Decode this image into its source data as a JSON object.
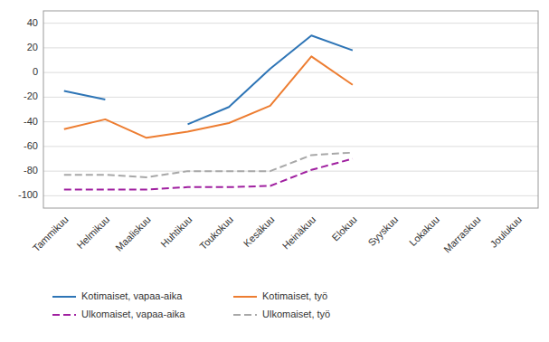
{
  "chart_data": {
    "type": "line",
    "categories": [
      "Tammikuu",
      "Helmikuu",
      "Maaliskuu",
      "Huhtikuu",
      "Toukokuu",
      "Kesäkuu",
      "Heinäkuu",
      "Elokuu",
      "Syyskuu",
      "Lokakuu",
      "Marraskuu",
      "Joulukuu"
    ],
    "series": [
      {
        "name": "Kotimaiset, vapaa-aika",
        "color": "#2E75B6",
        "line_style": "solid",
        "values": [
          -15,
          -22,
          null,
          -42,
          -28,
          3,
          30,
          18,
          null,
          null,
          null,
          null
        ]
      },
      {
        "name": "Kotimaiset, työ",
        "color": "#ED7D31",
        "line_style": "solid",
        "values": [
          -46,
          -38,
          -53,
          -48,
          -41,
          -27,
          13,
          -10,
          null,
          null,
          null,
          null
        ]
      },
      {
        "name": "Ulkomaiset, vapaa-aika",
        "color": "#A020A0",
        "line_style": "dashed",
        "values": [
          -95,
          -95,
          -95,
          -93,
          -93,
          -92,
          -79,
          -70,
          null,
          null,
          null,
          null
        ]
      },
      {
        "name": "Ulkomaiset, työ",
        "color": "#A8A8A8",
        "line_style": "dashed",
        "values": [
          -83,
          -83,
          -85,
          -80,
          -80,
          -80,
          -67,
          -65,
          null,
          null,
          null,
          null
        ]
      }
    ],
    "ylim": [
      -110,
      50
    ],
    "yticks": [
      -100,
      -80,
      -60,
      -40,
      -20,
      0,
      20,
      40
    ],
    "grid": true,
    "legend": "bottom"
  }
}
